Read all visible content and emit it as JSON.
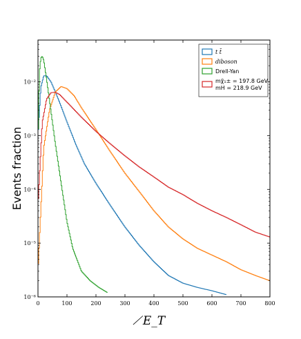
{
  "chart_data": {
    "type": "line",
    "ylabel": "Events fraction",
    "xlabel": "̸E_T",
    "xlim": [
      0,
      800
    ],
    "ylim": [
      1e-06,
      0.06
    ],
    "yscale": "log",
    "xticks": [
      0,
      100,
      200,
      300,
      400,
      500,
      600,
      700,
      800
    ],
    "yticks": [
      {
        "value": 1e-06,
        "label": "10⁻⁶"
      },
      {
        "value": 1e-05,
        "label": "10⁻⁵"
      },
      {
        "value": 0.0001,
        "label": "10⁻⁴"
      },
      {
        "value": 0.001,
        "label": "10⁻³"
      },
      {
        "value": 0.01,
        "label": "10⁻²"
      }
    ],
    "legend_position": "top-right",
    "grid": false,
    "series": [
      {
        "name": "t t̄",
        "color": "#1f77b4",
        "italic": true,
        "x": [
          0,
          10,
          20,
          30,
          45,
          60,
          80,
          100,
          130,
          160,
          200,
          250,
          300,
          350,
          400,
          450,
          500,
          550,
          600,
          650
        ],
        "y": [
          0.001,
          0.008,
          0.013,
          0.013,
          0.01,
          0.0065,
          0.0035,
          0.0018,
          0.0007,
          0.0003,
          0.00013,
          5e-05,
          2e-05,
          9e-06,
          4.5e-06,
          2.5e-06,
          1.8e-06,
          1.5e-06,
          1.3e-06,
          1.1e-06
        ]
      },
      {
        "name": "diboson",
        "color": "#ff7f0e",
        "italic": true,
        "x": [
          0,
          20,
          40,
          60,
          80,
          100,
          125,
          150,
          200,
          250,
          300,
          350,
          400,
          450,
          500,
          550,
          600,
          650,
          700,
          750,
          800
        ],
        "y": [
          3e-06,
          0.0006,
          0.003,
          0.0065,
          0.0082,
          0.0075,
          0.0055,
          0.0033,
          0.0013,
          0.0005,
          0.0002,
          9e-05,
          4e-05,
          2e-05,
          1.2e-05,
          8e-06,
          6e-06,
          4.5e-06,
          3.2e-06,
          2.5e-06,
          2e-06
        ]
      },
      {
        "name": "Drell-Yan",
        "color": "#2ca02c",
        "italic": false,
        "x": [
          0,
          5,
          10,
          15,
          20,
          30,
          45,
          60,
          80,
          100,
          120,
          150,
          180,
          210,
          240
        ],
        "y": [
          0.0006,
          0.015,
          0.028,
          0.03,
          0.025,
          0.011,
          0.0028,
          0.0007,
          0.00013,
          2.5e-05,
          8e-06,
          3e-06,
          2e-06,
          1.5e-06,
          1.2e-06
        ]
      },
      {
        "name": "mχ̃₁± = 197.8 GeV, mH = 218.9 GeV",
        "legend_lines": [
          "mχ̃₁± = 197.8 GeV",
          "mH = 218.9 GeV"
        ],
        "color": "#d62728",
        "italic": false,
        "x": [
          0,
          15,
          30,
          45,
          60,
          75,
          100,
          150,
          200,
          250,
          300,
          350,
          400,
          450,
          500,
          550,
          600,
          650,
          700,
          750,
          800
        ],
        "y": [
          5e-05,
          0.0018,
          0.0048,
          0.0063,
          0.0064,
          0.0058,
          0.0042,
          0.0022,
          0.0012,
          0.0007,
          0.00042,
          0.00026,
          0.00017,
          0.00011,
          8e-05,
          5.5e-05,
          4e-05,
          3e-05,
          2.2e-05,
          1.6e-05,
          1.3e-05
        ]
      }
    ]
  }
}
